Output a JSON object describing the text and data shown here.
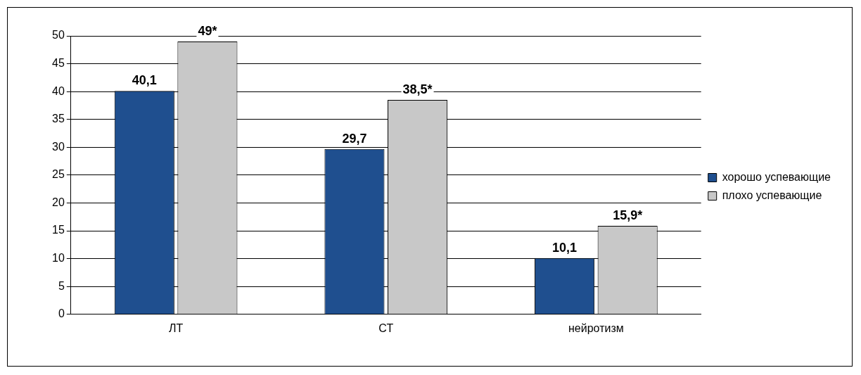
{
  "chart_data": {
    "type": "bar",
    "categories": [
      "ЛТ",
      "СТ",
      "нейротизм"
    ],
    "series": [
      {
        "name": "хорошо успевающие",
        "color": "#1f4f8f",
        "values": [
          40.1,
          29.7,
          10.1
        ],
        "value_labels": [
          "40,1",
          "29,7",
          "10,1"
        ]
      },
      {
        "name": "плохо успевающие",
        "color": "#c8c8c8",
        "values": [
          49,
          38.5,
          15.9
        ],
        "value_labels": [
          "49*",
          "38,5*",
          "15,9*"
        ]
      }
    ],
    "ylim": [
      0,
      50
    ],
    "yticks": [
      0,
      5,
      10,
      15,
      20,
      25,
      30,
      35,
      40,
      45,
      50
    ],
    "grid": "y",
    "legend": "right"
  }
}
